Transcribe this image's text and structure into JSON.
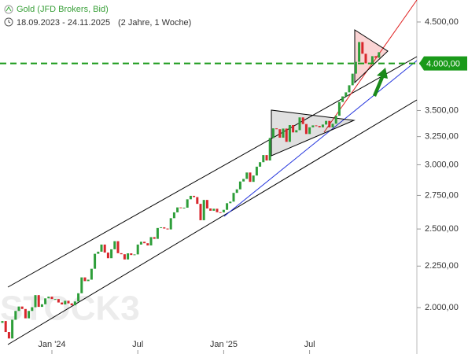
{
  "chart_data": {
    "type": "candlestick",
    "title": "Gold (JFD Brokers, Bid)",
    "subtitle": "18.09.2023 - 24.11.2025",
    "period": "(2 Jahre, 1 Woche)",
    "watermark": "STOCK3",
    "log_scale": true,
    "up_color": "#2e9e3a",
    "down_color": "#d8262c",
    "ylim": [
      1753,
      4790
    ],
    "yticks": [
      {
        "value": 2000,
        "label": "2.000,00"
      },
      {
        "value": 2250,
        "label": "2.250,00"
      },
      {
        "value": 2500,
        "label": "2.500,00"
      },
      {
        "value": 2750,
        "label": "2.750,00"
      },
      {
        "value": 3000,
        "label": "3.000,00"
      },
      {
        "value": 3250,
        "label": "3.250,00"
      },
      {
        "value": 3500,
        "label": "3.500,00"
      },
      {
        "value": 4500,
        "label": "4.500,00"
      }
    ],
    "price_line": {
      "value": 4000,
      "label": "4.000,00",
      "color": "#1a9a1a"
    },
    "categories": [
      null,
      null,
      null,
      null,
      null,
      null,
      null,
      null,
      null,
      null,
      null,
      null,
      null,
      null,
      null,
      "Jan '24",
      null,
      null,
      null,
      null,
      null,
      null,
      null,
      null,
      null,
      null,
      null,
      null,
      null,
      null,
      null,
      null,
      null,
      null,
      null,
      null,
      null,
      null,
      null,
      null,
      null,
      "Jul",
      null,
      null,
      null,
      null,
      null,
      null,
      null,
      null,
      null,
      null,
      null,
      null,
      null,
      null,
      null,
      null,
      null,
      null,
      null,
      null,
      null,
      null,
      null,
      null,
      null,
      "Jan '25",
      null,
      null,
      null,
      null,
      null,
      null,
      null,
      null,
      null,
      null,
      null,
      null,
      null,
      null,
      null,
      null,
      null,
      null,
      null,
      null,
      null,
      null,
      null,
      null,
      null,
      "Jul",
      null,
      null,
      null,
      null,
      null,
      null,
      null,
      null,
      null,
      null,
      null,
      null,
      null,
      null,
      null,
      null,
      null,
      null,
      null,
      null,
      null
    ],
    "open": [
      1915,
      1925,
      1866,
      1832,
      1932,
      1981,
      2006,
      1992,
      1940,
      1981,
      2002,
      2072,
      2004,
      2019,
      2053,
      2063,
      2049,
      2049,
      2029,
      2018,
      2039,
      2024,
      2013,
      2035,
      2083,
      2179,
      2156,
      2165,
      2233,
      2330,
      2344,
      2392,
      2338,
      2301,
      2360,
      2415,
      2334,
      2327,
      2293,
      2333,
      2322,
      2326,
      2392,
      2411,
      2401,
      2386,
      2443,
      2431,
      2507,
      2512,
      2503,
      2497,
      2578,
      2621,
      2658,
      2653,
      2656,
      2720,
      2747,
      2737,
      2685,
      2563,
      2715,
      2650,
      2633,
      2648,
      2622,
      2621,
      2640,
      2690,
      2702,
      2770,
      2798,
      2861,
      2882,
      2935,
      2858,
      2910,
      2984,
      3022,
      3084,
      3037,
      3237,
      3327,
      3319,
      3240,
      3325,
      3202,
      3358,
      3289,
      3310,
      3432,
      3368,
      3274,
      3337,
      3355,
      3350,
      3337,
      3363,
      3398,
      3336,
      3371,
      3448,
      3586,
      3643,
      3685,
      3760,
      3886,
      4018,
      4251,
      4112,
      4002,
      4000,
      4084,
      4065
    ],
    "close": [
      1925,
      1866,
      1832,
      1932,
      1981,
      2006,
      1992,
      1940,
      1981,
      2002,
      2072,
      2004,
      2019,
      2053,
      2063,
      2049,
      2049,
      2029,
      2018,
      2039,
      2024,
      2013,
      2035,
      2083,
      2179,
      2156,
      2165,
      2233,
      2330,
      2344,
      2392,
      2338,
      2301,
      2360,
      2415,
      2334,
      2327,
      2293,
      2333,
      2322,
      2326,
      2392,
      2411,
      2401,
      2386,
      2443,
      2431,
      2507,
      2512,
      2503,
      2497,
      2578,
      2621,
      2658,
      2653,
      2656,
      2720,
      2747,
      2737,
      2685,
      2563,
      2715,
      2650,
      2633,
      2648,
      2622,
      2621,
      2640,
      2690,
      2702,
      2770,
      2798,
      2861,
      2882,
      2935,
      2858,
      2910,
      2984,
      3022,
      3084,
      3037,
      3237,
      3327,
      3319,
      3240,
      3325,
      3202,
      3358,
      3289,
      3310,
      3432,
      3368,
      3274,
      3337,
      3355,
      3350,
      3337,
      3363,
      3398,
      3336,
      3371,
      3448,
      3586,
      3643,
      3685,
      3760,
      3886,
      4018,
      4251,
      4112,
      4002,
      4000,
      4084,
      4065,
      4130
    ]
  }
}
